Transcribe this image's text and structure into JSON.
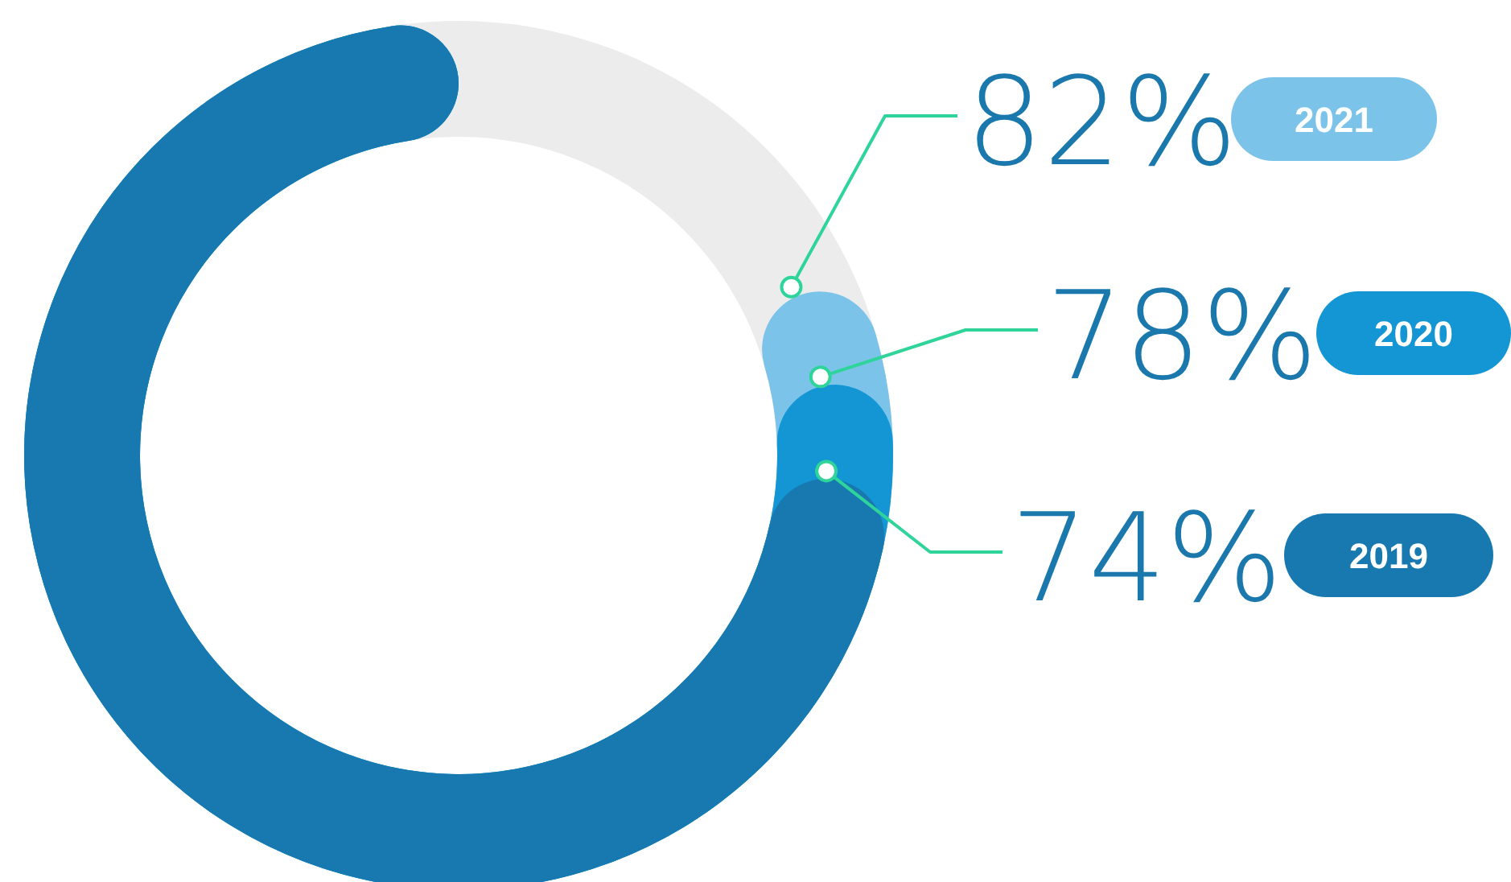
{
  "chart_data": {
    "type": "other",
    "categories": [
      "2019",
      "2020",
      "2021"
    ],
    "values": [
      74,
      78,
      82
    ],
    "value_labels": [
      "74%",
      "78%",
      "82%"
    ],
    "colors": [
      "#1779b0",
      "#1496d4",
      "#7cc3ea"
    ]
  }
}
